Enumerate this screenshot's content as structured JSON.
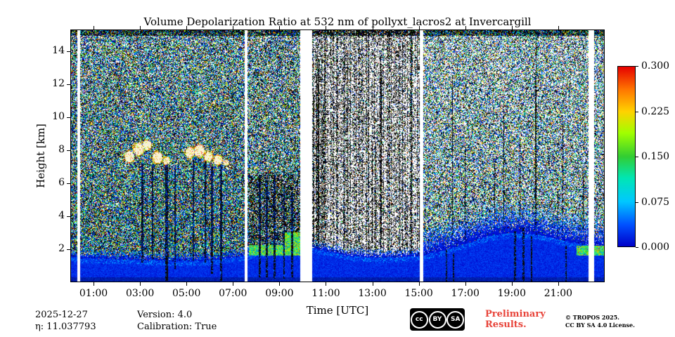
{
  "chart_data": {
    "type": "heatmap",
    "title": "Volume Depolarization Ratio at 532 nm of pollyxt_lacros2 at Invercargill",
    "xlabel": "Time [UTC]",
    "ylabel": "Height [km]",
    "x_range_hours": [
      0,
      23
    ],
    "x_ticks": [
      {
        "hour": 1,
        "label": "01:00"
      },
      {
        "hour": 3,
        "label": "03:00"
      },
      {
        "hour": 5,
        "label": "05:00"
      },
      {
        "hour": 7,
        "label": "07:00"
      },
      {
        "hour": 9,
        "label": "09:00"
      },
      {
        "hour": 11,
        "label": "11:00"
      },
      {
        "hour": 13,
        "label": "13:00"
      },
      {
        "hour": 15,
        "label": "15:00"
      },
      {
        "hour": 17,
        "label": "17:00"
      },
      {
        "hour": 19,
        "label": "19:00"
      },
      {
        "hour": 21,
        "label": "21:00"
      }
    ],
    "y_range_km": [
      0,
      15.3
    ],
    "y_ticks": [
      {
        "km": 2,
        "label": "2"
      },
      {
        "km": 4,
        "label": "4"
      },
      {
        "km": 6,
        "label": "6"
      },
      {
        "km": 8,
        "label": "8"
      },
      {
        "km": 10,
        "label": "10"
      },
      {
        "km": 12,
        "label": "12"
      },
      {
        "km": 14,
        "label": "14"
      }
    ],
    "colorbar": {
      "range": [
        0.0,
        0.3
      ],
      "ticks": [
        {
          "value": 0.3,
          "label": "0.300"
        },
        {
          "value": 0.225,
          "label": "0.225"
        },
        {
          "value": 0.15,
          "label": "0.150"
        },
        {
          "value": 0.075,
          "label": "0.075"
        },
        {
          "value": 0.0,
          "label": "0.000"
        }
      ],
      "stops": [
        {
          "v": 0.0,
          "color": "#0000c8"
        },
        {
          "v": 0.12,
          "color": "#0050ff"
        },
        {
          "v": 0.25,
          "color": "#00c8ff"
        },
        {
          "v": 0.38,
          "color": "#00e6b4"
        },
        {
          "v": 0.5,
          "color": "#32cd32"
        },
        {
          "v": 0.63,
          "color": "#a0ff00"
        },
        {
          "v": 0.75,
          "color": "#ffd200"
        },
        {
          "v": 0.87,
          "color": "#ff7800"
        },
        {
          "v": 1.0,
          "color": "#e60000"
        }
      ]
    },
    "features": {
      "noise_seed": 1337,
      "boundary_layer_km": [
        [
          0,
          1.5
        ],
        [
          2,
          1.4
        ],
        [
          4,
          1.3
        ],
        [
          6,
          1.3
        ],
        [
          7.5,
          1.6
        ],
        [
          8,
          1.8
        ],
        [
          9,
          2.0
        ],
        [
          10,
          2.2
        ],
        [
          11,
          1.9
        ],
        [
          12,
          1.6
        ],
        [
          13,
          1.5
        ],
        [
          14,
          1.5
        ],
        [
          15,
          1.6
        ],
        [
          16,
          1.9
        ],
        [
          17,
          2.3
        ],
        [
          18,
          2.8
        ],
        [
          19,
          3.0
        ],
        [
          20,
          2.9
        ],
        [
          21,
          2.6
        ],
        [
          22,
          2.3
        ],
        [
          23,
          2.1
        ]
      ],
      "data_gaps_hours": [
        [
          0.3,
          0.42
        ],
        [
          7.52,
          7.64
        ],
        [
          9.9,
          10.42
        ],
        [
          15.05,
          15.2
        ],
        [
          22.3,
          22.55
        ]
      ],
      "clouds": [
        {
          "t": 2.55,
          "h": 7.6,
          "rx": 0.28,
          "ry": 0.45
        },
        {
          "t": 2.95,
          "h": 8.05,
          "rx": 0.3,
          "ry": 0.5
        },
        {
          "t": 3.3,
          "h": 8.3,
          "rx": 0.24,
          "ry": 0.4
        },
        {
          "t": 3.75,
          "h": 7.55,
          "rx": 0.3,
          "ry": 0.45
        },
        {
          "t": 4.15,
          "h": 7.35,
          "rx": 0.2,
          "ry": 0.3
        },
        {
          "t": 5.15,
          "h": 7.85,
          "rx": 0.26,
          "ry": 0.45
        },
        {
          "t": 5.55,
          "h": 7.95,
          "rx": 0.3,
          "ry": 0.5
        },
        {
          "t": 5.95,
          "h": 7.6,
          "rx": 0.24,
          "ry": 0.4
        },
        {
          "t": 6.35,
          "h": 7.4,
          "rx": 0.26,
          "ry": 0.35
        },
        {
          "t": 6.7,
          "h": 7.25,
          "rx": 0.16,
          "ry": 0.25
        }
      ],
      "streaks": [
        {
          "t": 3.1,
          "w": 0.08,
          "h0": 1.2,
          "h1": 7.2
        },
        {
          "t": 3.55,
          "w": 0.06,
          "h0": 1.4,
          "h1": 7.0
        },
        {
          "t": 4.15,
          "w": 0.1,
          "h0": 0.1,
          "h1": 7.1
        },
        {
          "t": 4.5,
          "w": 0.06,
          "h0": 0.8,
          "h1": 7.0
        },
        {
          "t": 5.3,
          "w": 0.07,
          "h0": 1.3,
          "h1": 7.4
        },
        {
          "t": 5.8,
          "w": 0.06,
          "h0": 1.2,
          "h1": 7.3
        },
        {
          "t": 6.1,
          "w": 0.08,
          "h0": 0.5,
          "h1": 7.0
        },
        {
          "t": 6.5,
          "w": 0.09,
          "h0": 0.1,
          "h1": 7.0
        },
        {
          "t": 8.15,
          "w": 0.1,
          "h0": 0.3,
          "h1": 6.5
        },
        {
          "t": 8.45,
          "w": 0.08,
          "h0": 0.3,
          "h1": 6.0
        },
        {
          "t": 8.8,
          "w": 0.1,
          "h0": 0.2,
          "h1": 6.5
        },
        {
          "t": 9.2,
          "w": 0.09,
          "h0": 0.2,
          "h1": 6.0
        },
        {
          "t": 9.55,
          "w": 0.08,
          "h0": 0.3,
          "h1": 5.5
        },
        {
          "t": 16.2,
          "w": 0.07,
          "h0": 0.0,
          "h1": 2.0
        },
        {
          "t": 16.5,
          "w": 0.06,
          "h0": 0.0,
          "h1": 1.8
        },
        {
          "t": 19.15,
          "w": 0.08,
          "h0": 0.0,
          "h1": 3.1
        },
        {
          "t": 19.5,
          "w": 0.07,
          "h0": 0.0,
          "h1": 3.3
        },
        {
          "t": 19.85,
          "w": 0.07,
          "h0": 0.0,
          "h1": 2.8
        },
        {
          "t": 21.35,
          "w": 0.06,
          "h0": 0.0,
          "h1": 2.2
        }
      ],
      "bright_low_layers": [
        {
          "t0": 7.7,
          "t1": 10.0,
          "h0": 1.6,
          "h1": 2.25
        },
        {
          "t0": 9.2,
          "t1": 10.0,
          "h0": 2.25,
          "h1": 3.0
        },
        {
          "t0": 21.8,
          "t1": 23.0,
          "h0": 1.6,
          "h1": 2.2
        }
      ],
      "regimes": [
        {
          "t0": 0,
          "t1": 7.7,
          "density": 0.95,
          "black": 0.32
        },
        {
          "t0": 7.7,
          "t1": 10.3,
          "density": 0.9,
          "black": 0.38,
          "low_black": 0.62,
          "low_top_km": 6.5
        },
        {
          "t0": 10.3,
          "t1": 15.1,
          "density": 0.5,
          "black": 0.82,
          "column_variance": true,
          "dense_column_prob": 0.1
        },
        {
          "t0": 15.1,
          "t1": 23.01,
          "density": 0.72,
          "black": 0.34,
          "dense_column_prob": 0.04
        }
      ]
    }
  },
  "footer": {
    "date": "2025-12-27",
    "eta": "η: 11.037793",
    "version": "Version: 4.0",
    "calibration": "Calibration: True",
    "preliminary_line1": "Preliminary",
    "preliminary_line2": "Results.",
    "preliminary_color": "#e8443a",
    "copyright": "© TROPOS 2025.",
    "license": "CC BY SA 4.0 License.",
    "badge": {
      "cc": "cc",
      "by": "BY",
      "sa": "SA"
    }
  }
}
